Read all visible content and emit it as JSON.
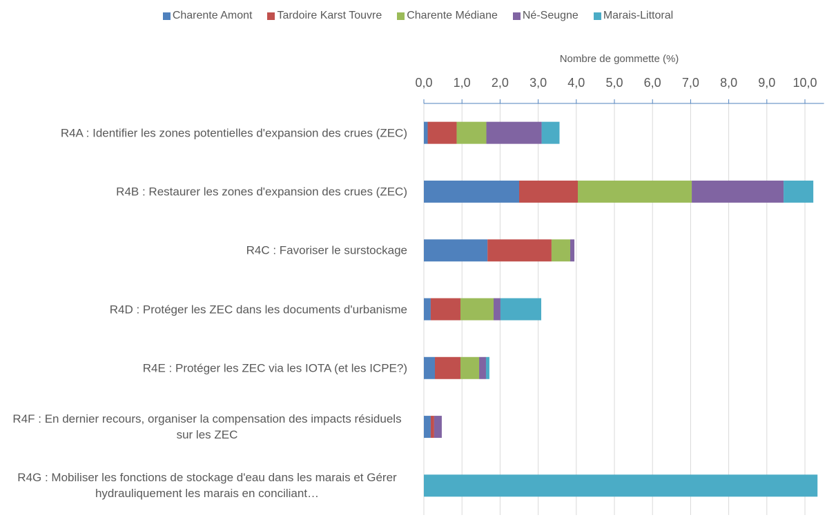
{
  "chart_data": {
    "type": "stacked-barh",
    "x_label": "Nombre de gommette (%)",
    "categories": [
      "R4A : Identifier les zones potentielles d'expansion des crues (ZEC)",
      "R4B : Restaurer les zones d'expansion des crues (ZEC)",
      "R4C : Favoriser le surstockage",
      "R4D : Protéger les ZEC dans les documents d'urbanisme",
      "R4E : Protéger les ZEC via les IOTA (et les ICPE?)",
      "R4F : En dernier recours, organiser la compensation des impacts résiduels sur les ZEC",
      "R4G : Mobiliser les fonctions de stockage d'eau dans les marais et Gérer hydrauliquement les marais en conciliant…"
    ],
    "series": [
      {
        "name": "Charente Amont",
        "color": "#4f81bd",
        "values": [
          0.1,
          2.5,
          1.67,
          0.18,
          0.29,
          0.18,
          0
        ]
      },
      {
        "name": "Tardoire Karst Touvre",
        "color": "#c0504d",
        "values": [
          0.76,
          1.54,
          1.68,
          0.78,
          0.67,
          0.09,
          0
        ]
      },
      {
        "name": "Charente Médiane",
        "color": "#9bbb59",
        "values": [
          0.78,
          2.99,
          0.49,
          0.87,
          0.49,
          0,
          0
        ]
      },
      {
        "name": "Né-Seugne",
        "color": "#8064a2",
        "values": [
          1.45,
          2.41,
          0.11,
          0.18,
          0.18,
          0.2,
          0
        ]
      },
      {
        "name": "Marais-Littoral",
        "color": "#4bacc6",
        "values": [
          0.47,
          0.78,
          0,
          1.07,
          0.09,
          0,
          10.33
        ]
      }
    ],
    "xlim": [
      0,
      10.5
    ],
    "xticks": [
      {
        "value": 0,
        "label": "0,0"
      },
      {
        "value": 1,
        "label": "1,0"
      },
      {
        "value": 2,
        "label": "2,0"
      },
      {
        "value": 3,
        "label": "3,0"
      },
      {
        "value": 4,
        "label": "4,0"
      },
      {
        "value": 5,
        "label": "5,0"
      },
      {
        "value": 6,
        "label": "6,0"
      },
      {
        "value": 7,
        "label": "7,0"
      },
      {
        "value": 8,
        "label": "8,0"
      },
      {
        "value": 9,
        "label": "9,0"
      },
      {
        "value": 10,
        "label": "10,0"
      }
    ],
    "grid": true,
    "legend": "top"
  }
}
